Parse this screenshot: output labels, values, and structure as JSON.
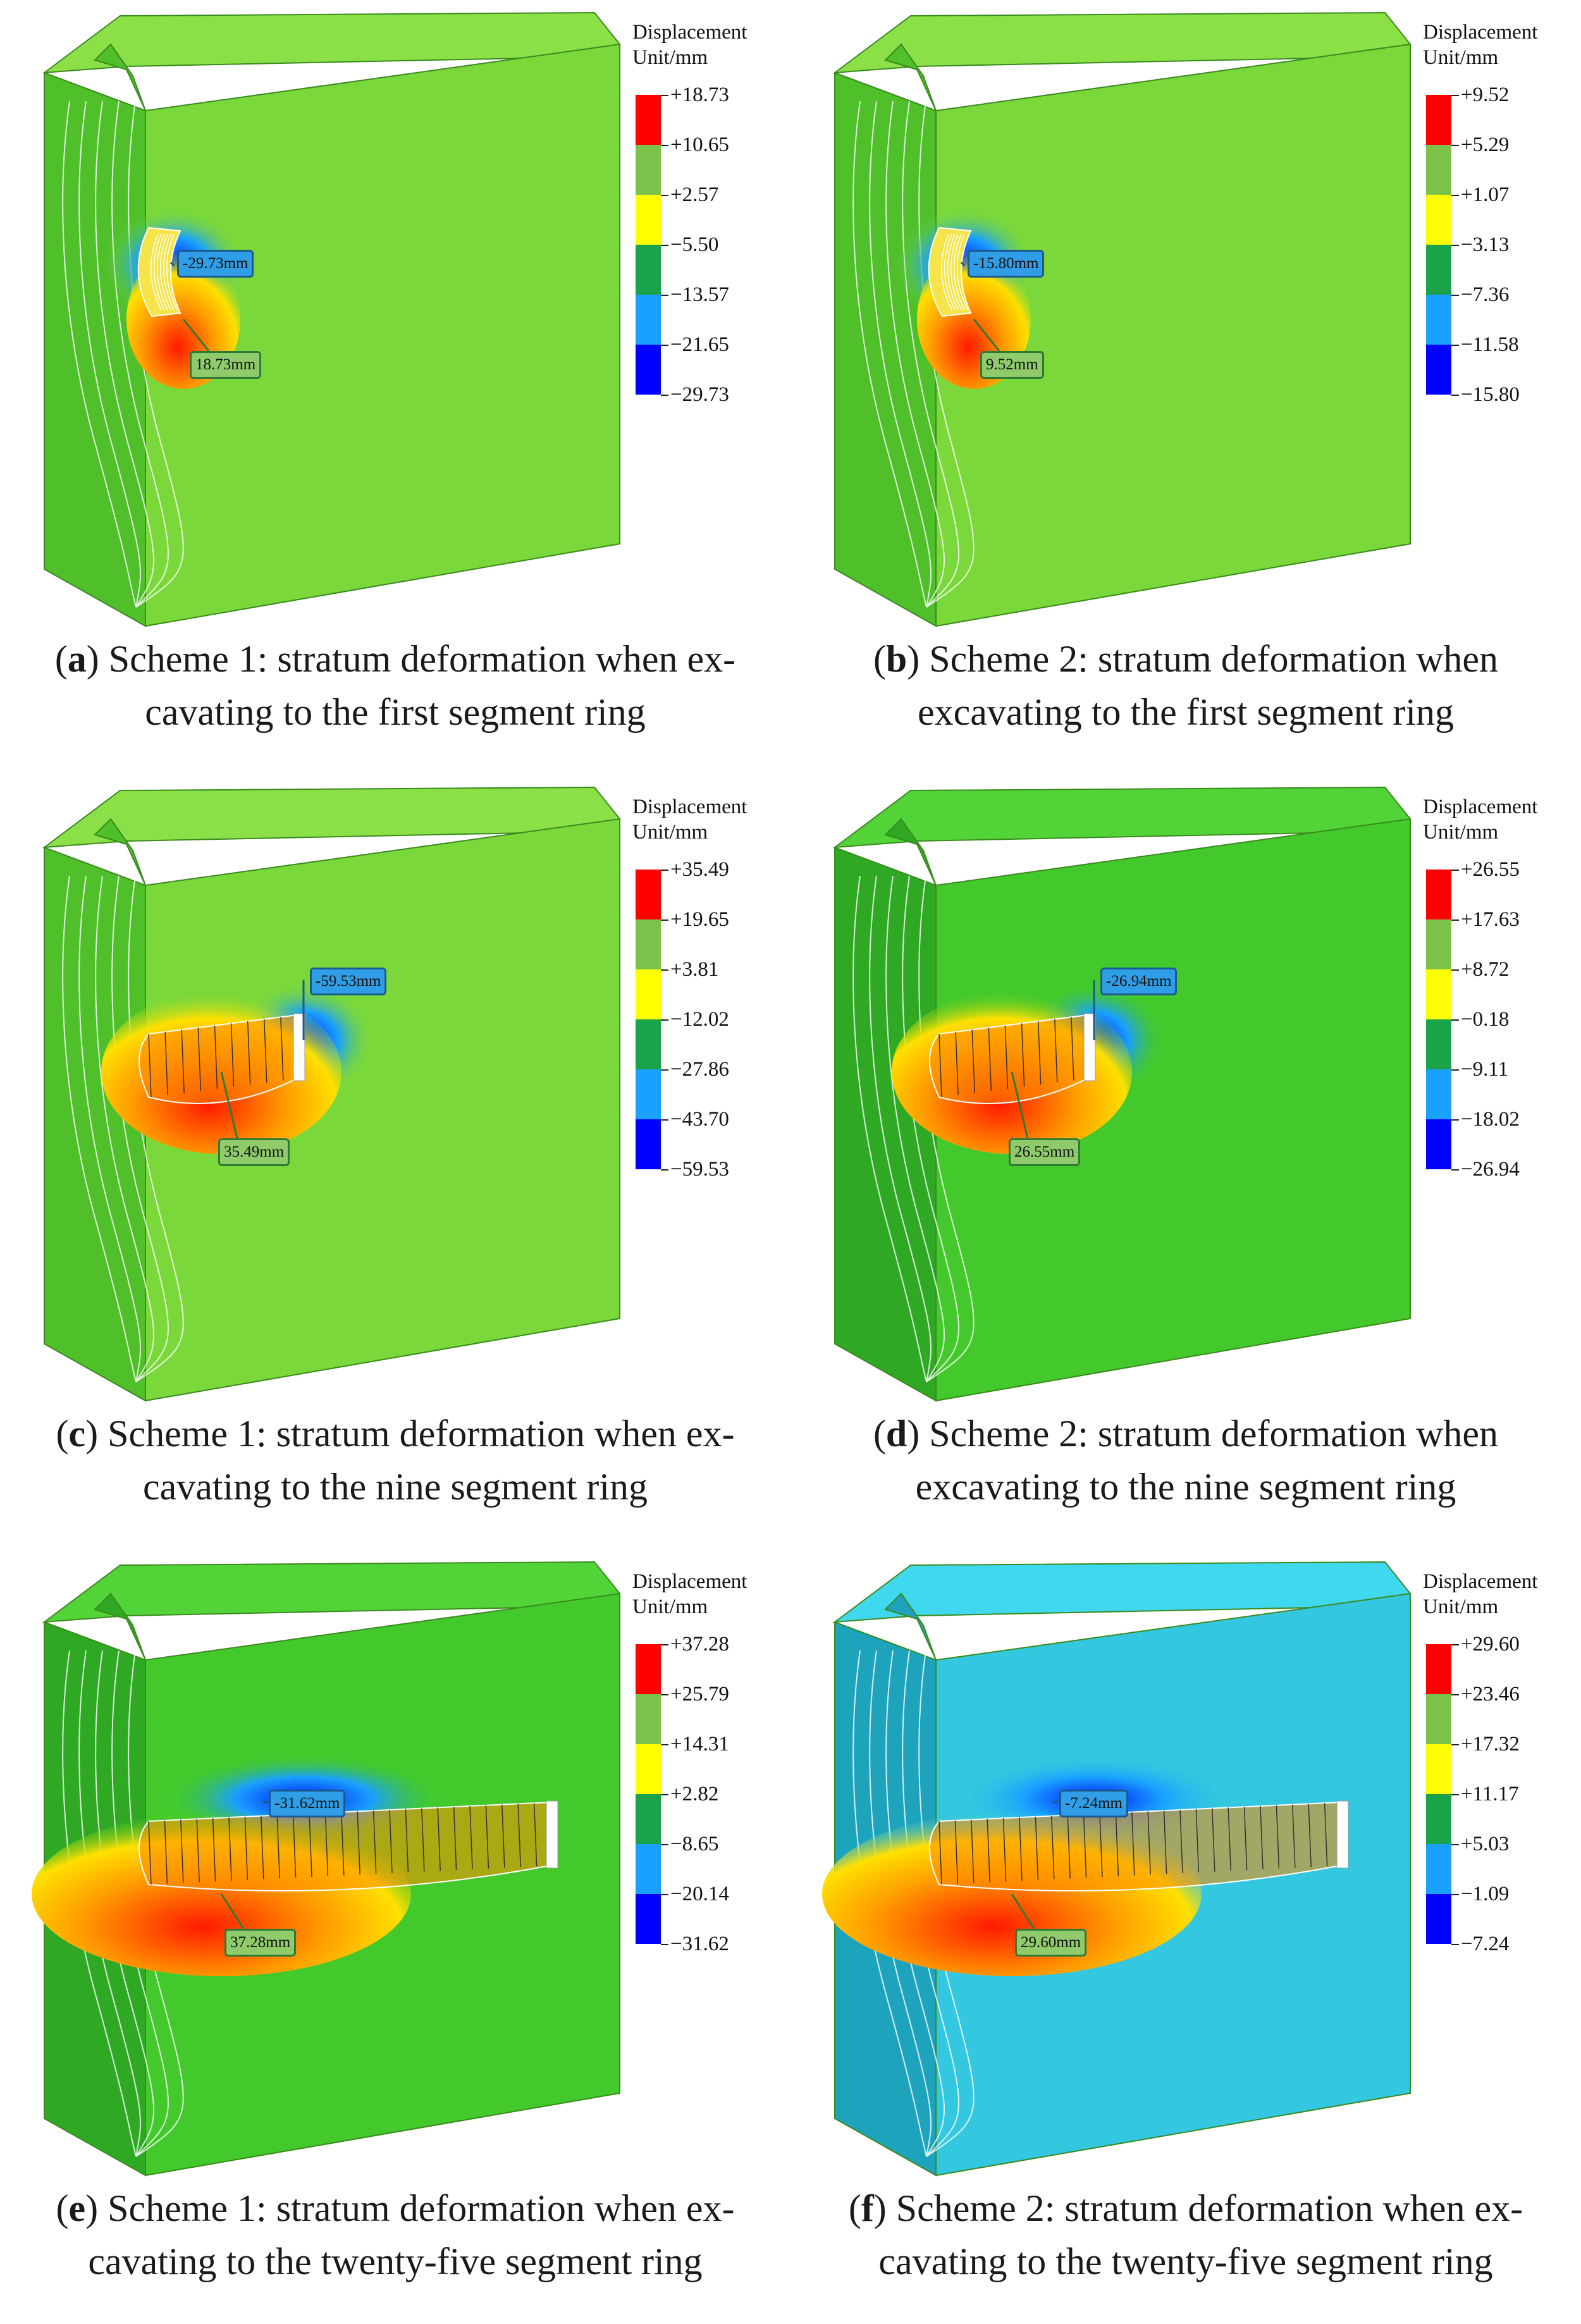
{
  "legend_title_1": "Displacement",
  "legend_title_2": "Unit/mm",
  "legend_colors": [
    "#ff0000",
    "#7cc24a",
    "#ffff00",
    "#1aa34a",
    "#1aa0ff",
    "#0000ff"
  ],
  "panels": [
    {
      "letter": "a",
      "caption_rest": " Scheme 1: stratum deformation when ex-cavating to the first segment ring",
      "ticks": [
        "+18.73",
        "+10.65",
        "+2.57",
        "−5.50",
        "−13.57",
        "−21.65",
        "−29.73"
      ],
      "callout_neg": "-29.73mm",
      "callout_pos": "18.73mm",
      "base_color": "#7ad83a",
      "side_color": "#4fbf2a",
      "top_color": "#8ae046",
      "stage": 1
    },
    {
      "letter": "b",
      "caption_rest": " Scheme 2: stratum deformation when excavating to the first segment ring",
      "ticks": [
        "+9.52",
        "+5.29",
        "+1.07",
        "−3.13",
        "−7.36",
        "−11.58",
        "−15.80"
      ],
      "callout_neg": "-15.80mm",
      "callout_pos": "9.52mm",
      "base_color": "#7ad83a",
      "side_color": "#4fbf2a",
      "top_color": "#8ae046",
      "stage": 1
    },
    {
      "letter": "c",
      "caption_rest": " Scheme 1: stratum deformation when ex-cavating to the nine segment ring",
      "ticks": [
        "+35.49",
        "+19.65",
        "+3.81",
        "−12.02",
        "−27.86",
        "−43.70",
        "−59.53"
      ],
      "callout_neg": "-59.53mm",
      "callout_pos": "35.49mm",
      "base_color": "#7ad83a",
      "side_color": "#4fbf2a",
      "top_color": "#8ae046",
      "stage": 2
    },
    {
      "letter": "d",
      "caption_rest": " Scheme 2: stratum deformation when excavating to the nine segment ring",
      "ticks": [
        "+26.55",
        "+17.63",
        "+8.72",
        "−0.18",
        "−9.11",
        "−18.02",
        "−26.94"
      ],
      "callout_neg": "-26.94mm",
      "callout_pos": "26.55mm",
      "base_color": "#43c92c",
      "side_color": "#2fa824",
      "top_color": "#52d438",
      "stage": 2
    },
    {
      "letter": "e",
      "caption_rest": " Scheme 1: stratum deformation when ex-cavating to the twenty-five segment ring",
      "ticks": [
        "+37.28",
        "+25.79",
        "+14.31",
        "+2.82",
        "−8.65",
        "−20.14",
        "−31.62"
      ],
      "callout_neg": "-31.62mm",
      "callout_pos": "37.28mm",
      "base_color": "#43c92c",
      "side_color": "#2fa824",
      "top_color": "#52d438",
      "stage": 3
    },
    {
      "letter": "f",
      "caption_rest": " Scheme 2: stratum deformation when ex-cavating to the twenty-five segment ring",
      "ticks": [
        "+29.60",
        "+23.46",
        "+17.32",
        "+11.17",
        "+5.03",
        "−1.09",
        "−7.24"
      ],
      "callout_neg": "-7.24mm",
      "callout_pos": "29.60mm",
      "base_color": "#33c8e0",
      "side_color": "#1ea3bd",
      "top_color": "#3fd8ee",
      "stage": 3
    }
  ]
}
